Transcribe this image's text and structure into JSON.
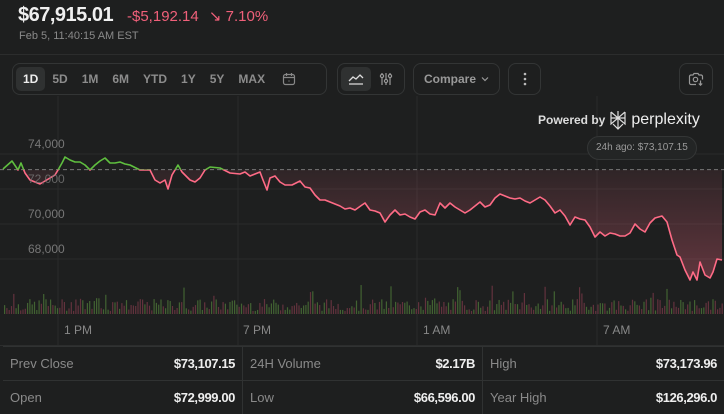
{
  "header": {
    "price": "$67,915.01",
    "change": "-$5,192.14",
    "change_arrow": "↘",
    "change_pct": "7.10%",
    "timestamp": "Feb 5, 11:40:15 AM EST"
  },
  "toolbar": {
    "ranges": [
      {
        "label": "1D",
        "active": true
      },
      {
        "label": "5D"
      },
      {
        "label": "1M"
      },
      {
        "label": "6M"
      },
      {
        "label": "YTD"
      },
      {
        "label": "1Y"
      },
      {
        "label": "5Y"
      },
      {
        "label": "MAX"
      }
    ],
    "calendar_icon": "calendar-icon",
    "line_chart_icon": "line-chart-icon",
    "settings_icon": "sliders-icon",
    "compare_label": "Compare",
    "more_icon": "more-vertical-icon",
    "screenshot_icon": "camera-download-icon"
  },
  "powered": {
    "label": "Powered by",
    "brand": "perplexity"
  },
  "reference": {
    "label": "24h ago: $73,107.15"
  },
  "colors": {
    "up": "#5fbf3f",
    "down": "#ff6b86",
    "background": "#1e1f1f"
  },
  "chart_data": {
    "type": "line",
    "y_ticks": [
      "74,000",
      "72,000",
      "70,000",
      "68,000"
    ],
    "x_ticks": [
      "1 PM",
      "7 PM",
      "1 AM",
      "7 AM"
    ],
    "baseline": 73107.15,
    "ylim": [
      66000,
      75000
    ],
    "grid": true
  },
  "stats": [
    {
      "label": "Prev Close",
      "value": "$73,107.15"
    },
    {
      "label": "24H Volume",
      "value": "$2.17B"
    },
    {
      "label": "High",
      "value": "$73,173.96"
    },
    {
      "label": "Open",
      "value": "$72,999.00"
    },
    {
      "label": "Low",
      "value": "$66,596.00"
    },
    {
      "label": "Year High",
      "value": "$126,296.0"
    }
  ]
}
